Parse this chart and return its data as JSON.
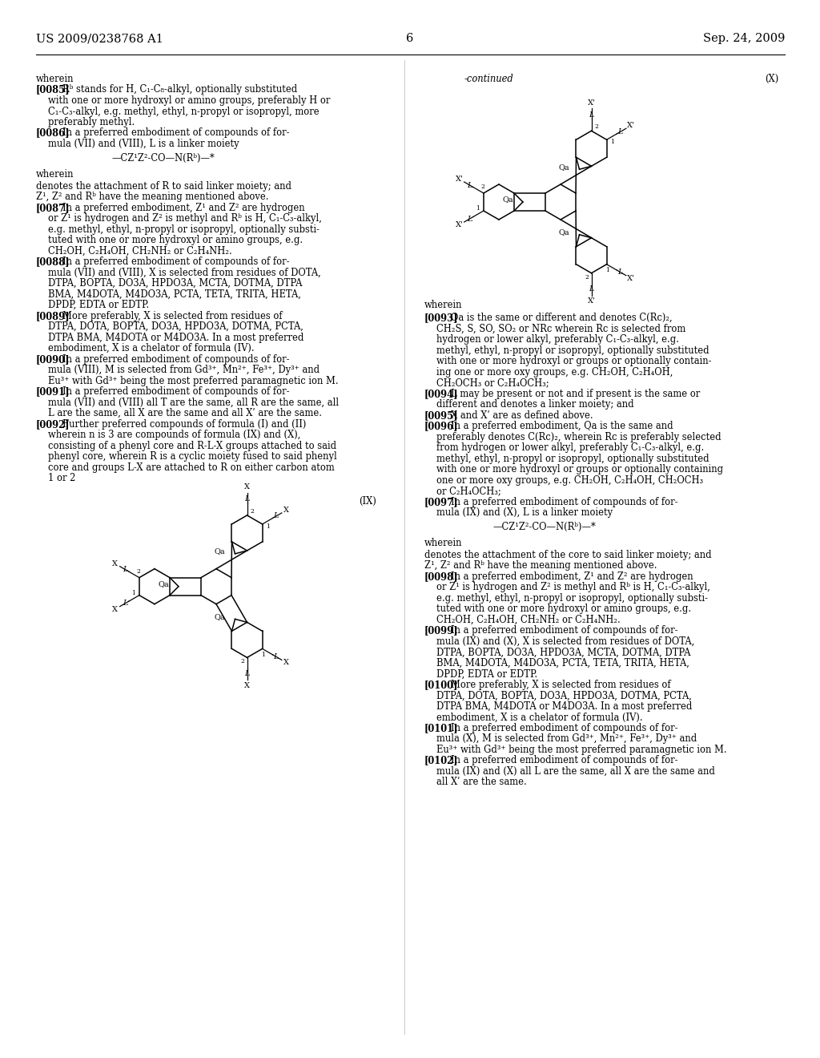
{
  "background_color": "#ffffff",
  "header_left": "US 2009/0238768 A1",
  "header_right": "Sep. 24, 2009",
  "page_number": "6",
  "text_color": "#000000",
  "body_fontsize": 8.3
}
